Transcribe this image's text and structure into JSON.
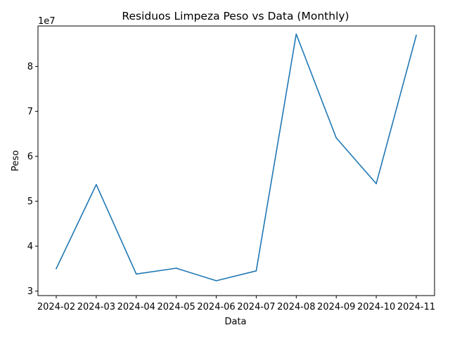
{
  "chart_data": {
    "type": "line",
    "title": "Residuos Limpeza Peso vs Data (Monthly)",
    "xlabel": "Data",
    "ylabel": "Peso",
    "y_offset_label": "1e7",
    "x": [
      "2024-02",
      "2024-03",
      "2024-04",
      "2024-05",
      "2024-06",
      "2024-07",
      "2024-08",
      "2024-09",
      "2024-10",
      "2024-11"
    ],
    "series": [
      {
        "values": [
          35000000,
          53700000,
          33800000,
          35100000,
          32300000,
          34500000,
          87200000,
          64100000,
          53900000,
          86900000
        ],
        "color": "#1f77b4"
      }
    ],
    "y_ticks": [
      30000000,
      40000000,
      50000000,
      60000000,
      70000000,
      80000000
    ],
    "y_tick_labels": [
      "3",
      "4",
      "5",
      "6",
      "7",
      "8"
    ],
    "ylim": [
      29000000,
      89000000
    ],
    "grid": false,
    "legend": "none"
  }
}
